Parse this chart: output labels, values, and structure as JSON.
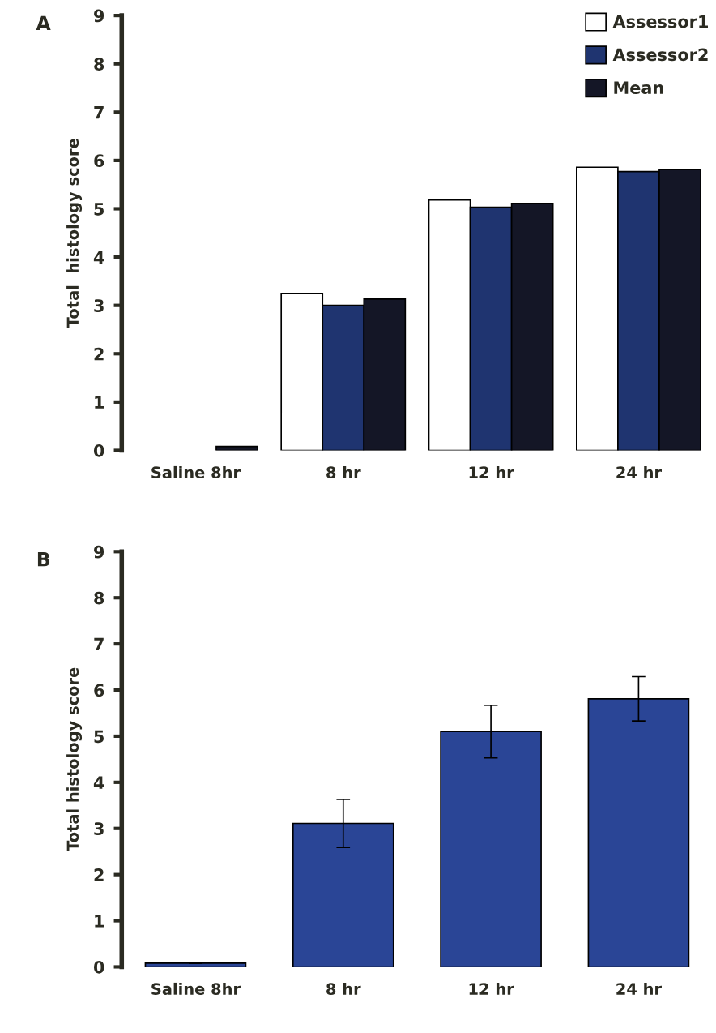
{
  "chart_data": [
    {
      "type": "bar",
      "title": "A",
      "ylabel": "Total  histology score",
      "categories": [
        "Saline 8hr",
        "8 hr",
        "12 hr",
        "24 hr"
      ],
      "ylim": [
        0,
        9
      ],
      "yticks": [
        0,
        1,
        2,
        3,
        4,
        5,
        6,
        7,
        8,
        9
      ],
      "legend": "top right",
      "grid": false,
      "series": [
        {
          "name": "Assessor1",
          "color": "#ffffff",
          "values": [
            0,
            3.25,
            5.18,
            5.86
          ]
        },
        {
          "name": "Assessor2",
          "color": "#1f3470",
          "values": [
            0,
            3.0,
            5.03,
            5.77
          ]
        },
        {
          "name": "Mean",
          "color": "#141626",
          "values": [
            0.08,
            3.13,
            5.11,
            5.81
          ]
        }
      ]
    },
    {
      "type": "bar",
      "title": "B",
      "ylabel": "Total histology score",
      "categories": [
        "Saline 8hr",
        "8 hr",
        "12 hr",
        "24 hr"
      ],
      "ylim": [
        0,
        9
      ],
      "yticks": [
        0,
        1,
        2,
        3,
        4,
        5,
        6,
        7,
        8,
        9
      ],
      "grid": false,
      "series": [
        {
          "color": "#2a4596",
          "values": [
            0.08,
            3.11,
            5.1,
            5.81
          ],
          "errors": [
            null,
            0.52,
            0.57,
            0.48
          ]
        }
      ]
    }
  ]
}
